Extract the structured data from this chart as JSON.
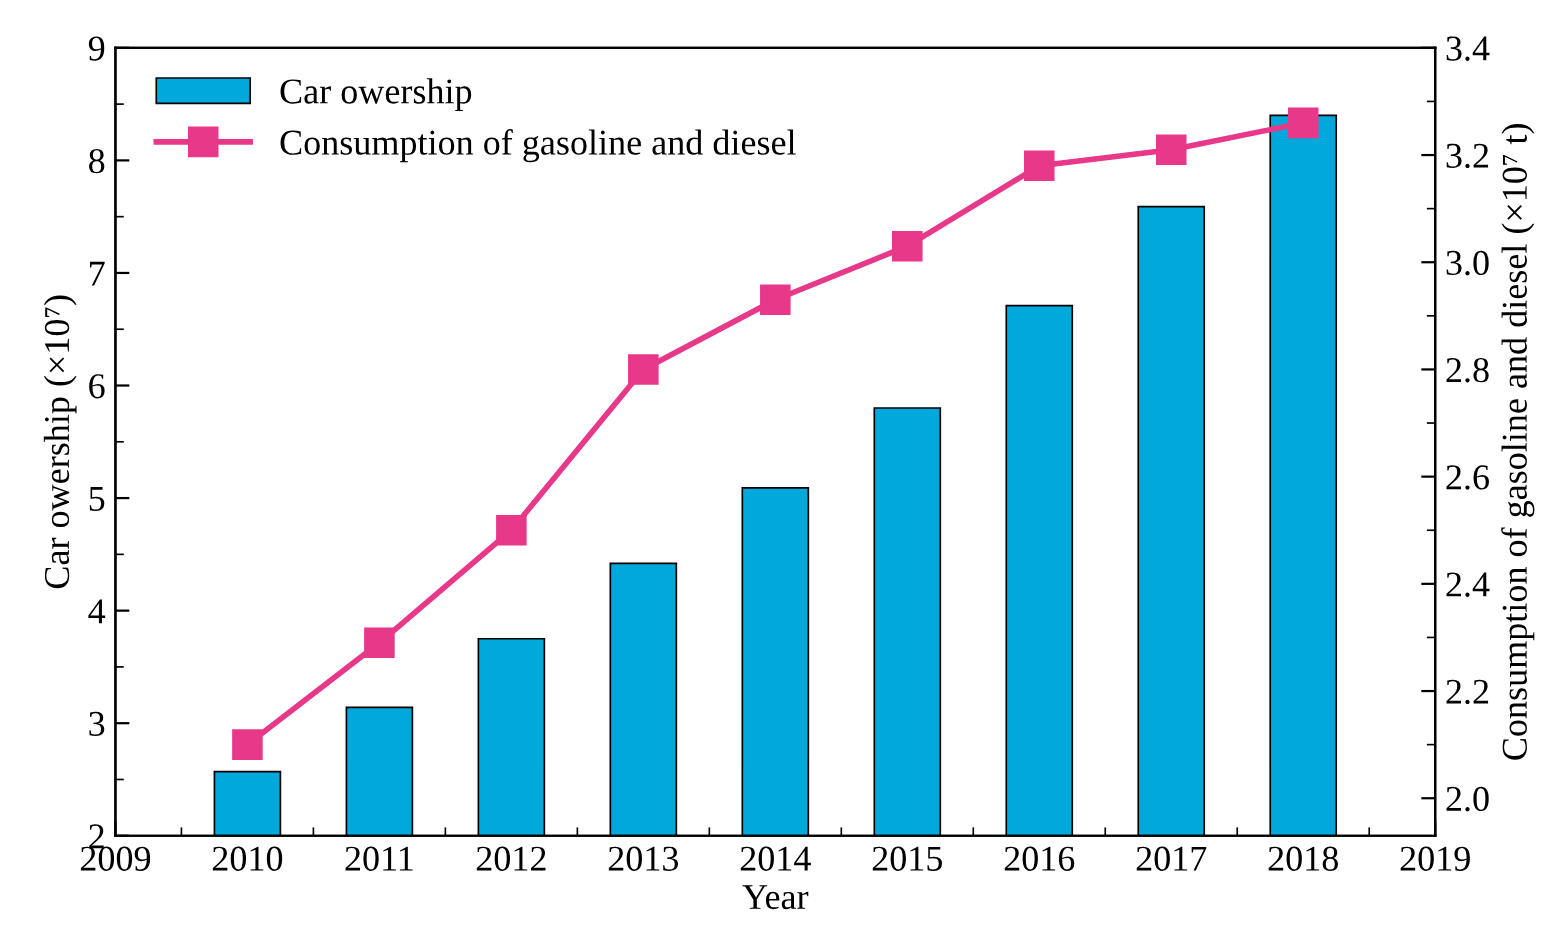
{
  "chart_data": {
    "type": "bar",
    "xlabel": "Year",
    "ylabel": "Car owership (×10⁷)",
    "y2label": "Consumption of gasoline and diesel (×10⁷ t)",
    "x": [
      2010,
      2011,
      2012,
      2013,
      2014,
      2015,
      2016,
      2017,
      2018
    ],
    "series": [
      {
        "name": "Car owership",
        "color": "#00a8dc",
        "values": [
          2.57,
          3.14,
          3.75,
          4.42,
          5.09,
          5.8,
          6.71,
          7.59,
          8.4
        ]
      },
      {
        "name": "Consumption of gasoline and diesel",
        "type": "line",
        "axis": "y2",
        "color": "#e8388a",
        "marker": "square",
        "values": [
          2.1,
          2.29,
          2.5,
          2.8,
          2.93,
          3.03,
          3.18,
          3.21,
          3.26
        ]
      }
    ],
    "xlim": [
      2009,
      2019
    ],
    "xticks": [
      2009,
      2010,
      2011,
      2012,
      2013,
      2014,
      2015,
      2016,
      2017,
      2018,
      2019
    ],
    "ylim": [
      2,
      9
    ],
    "yticks": [
      2,
      3,
      4,
      5,
      6,
      7,
      8,
      9
    ],
    "y2lim": [
      1.93,
      3.4
    ],
    "y2ticks": [
      {
        "value": 2.0,
        "label": "2.0"
      },
      2.2,
      2.4,
      2.6,
      2.8,
      {
        "value": 3.0,
        "label": "3.0"
      },
      3.2,
      3.4
    ],
    "legend": "top left",
    "grid": false
  }
}
